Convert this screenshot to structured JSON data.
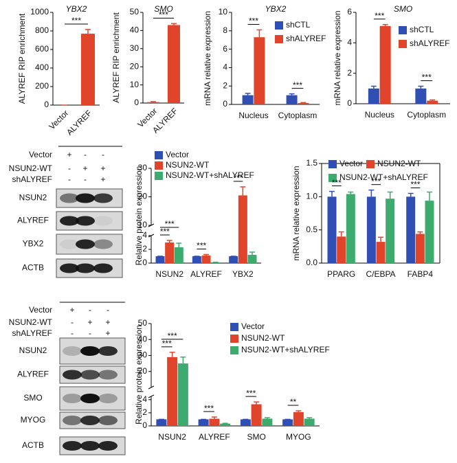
{
  "chart_data": [
    {
      "type": "bar",
      "title": "YBX2",
      "y_label": "ALYREF RIP enrichment",
      "categories": [
        "Vector",
        "ALYREF"
      ],
      "values": [
        0,
        770
      ],
      "errors": [
        0,
        45
      ],
      "color": "#e0452c",
      "ylim": [
        0,
        1000
      ],
      "yticks": [
        0,
        200,
        400,
        600,
        800,
        1000
      ],
      "significance": [
        {
          "label": "***",
          "pair": [
            0,
            1
          ]
        }
      ]
    },
    {
      "type": "bar",
      "title": "SMO",
      "y_label": "ALYREF RIP enrichment",
      "categories": [
        "Vector",
        "ALYREF"
      ],
      "values": [
        0.5,
        43
      ],
      "errors": [
        0.3,
        0.8
      ],
      "color": "#e0452c",
      "ylim": [
        0,
        50
      ],
      "yticks": [
        0,
        10,
        20,
        30,
        40,
        50
      ],
      "significance": [
        {
          "label": "***",
          "pair": [
            0,
            1
          ]
        }
      ]
    },
    {
      "type": "bar",
      "title": "YBX2",
      "y_label": "mRNA relative expression",
      "categories": [
        "Nucleus",
        "Cytoplasm"
      ],
      "series": [
        {
          "name": "shCTL",
          "color": "#2f4fb5",
          "values": [
            1.0,
            1.0
          ],
          "errors": [
            0.2,
            0.15
          ]
        },
        {
          "name": "shALYREF",
          "color": "#e0452c",
          "values": [
            7.3,
            0.15
          ],
          "errors": [
            0.8,
            0.05
          ]
        }
      ],
      "ylim": [
        0,
        10
      ],
      "yticks": [
        0,
        2,
        4,
        6,
        8,
        10
      ],
      "significance": [
        {
          "label": "***",
          "category": 0,
          "pair": [
            0,
            1
          ]
        },
        {
          "label": "***",
          "category": 1,
          "pair": [
            0,
            1
          ]
        }
      ]
    },
    {
      "type": "bar",
      "title": "SMO",
      "y_label": "mRNA relative expression",
      "categories": [
        "Nucleus",
        "Cytoplasm"
      ],
      "series": [
        {
          "name": "shCTL",
          "color": "#2f4fb5",
          "values": [
            1.0,
            1.0
          ],
          "errors": [
            0.15,
            0.15
          ]
        },
        {
          "name": "shALYREF",
          "color": "#e0452c",
          "values": [
            5.1,
            0.2
          ],
          "errors": [
            0.1,
            0.05
          ]
        }
      ],
      "ylim": [
        0,
        6
      ],
      "yticks": [
        0,
        2,
        4,
        6
      ],
      "significance": [
        {
          "label": "***",
          "category": 0,
          "pair": [
            0,
            1
          ]
        },
        {
          "label": "***",
          "category": 1,
          "pair": [
            0,
            1
          ]
        }
      ]
    },
    {
      "type": "bar",
      "y_label": "Relative protein expression",
      "categories": [
        "NSUN2",
        "ALYREF",
        "YBX2"
      ],
      "series": [
        {
          "name": "Vector",
          "color": "#2f4fb5",
          "values": [
            1,
            1,
            1
          ],
          "errors": [
            0,
            0,
            0
          ]
        },
        {
          "name": "NSUN2-WT",
          "color": "#e0452c",
          "values": [
            3.0,
            1.1,
            20.5
          ],
          "errors": [
            0.3,
            0.15,
            3
          ]
        },
        {
          "name": "NSUN2-WT+shALYREF",
          "color": "#3daa6e",
          "values": [
            2.3,
            0.1,
            1.2
          ],
          "errors": [
            0.6,
            0.03,
            0.4
          ]
        }
      ],
      "ylim": [
        0,
        30
      ],
      "axis_break": [
        4,
        10
      ],
      "yticks": [
        0,
        2,
        4,
        10,
        20,
        30
      ],
      "significance": [
        {
          "label": "***",
          "category": 0,
          "pair": [
            0,
            1
          ]
        },
        {
          "label": "***",
          "category": 0,
          "pair": [
            0,
            2
          ]
        },
        {
          "label": "***",
          "category": 1,
          "pair": [
            0,
            1
          ]
        },
        {
          "label": "***",
          "category": 2,
          "pair": [
            0,
            1
          ]
        }
      ]
    },
    {
      "type": "bar",
      "y_label": "mRNA relative expression",
      "categories": [
        "PPARG",
        "C/EBPA",
        "FABP4"
      ],
      "series": [
        {
          "name": "Vector",
          "color": "#2f4fb5",
          "values": [
            1.0,
            1.0,
            1.0
          ],
          "errors": [
            0.08,
            0.1,
            0.05
          ]
        },
        {
          "name": "NSUN2-WT",
          "color": "#e0452c",
          "values": [
            0.4,
            0.32,
            0.44
          ],
          "errors": [
            0.07,
            0.07,
            0.03
          ]
        },
        {
          "name": "NSUN2-WT+shALYREF",
          "color": "#3daa6e",
          "values": [
            1.04,
            0.97,
            0.94
          ],
          "errors": [
            0.03,
            0.1,
            0.13
          ]
        }
      ],
      "ylim": [
        0,
        1.5
      ],
      "yticks": [
        {
          "value": 0,
          "label": "0.0"
        },
        0.5,
        {
          "value": 1,
          "label": "1.0"
        },
        1.5
      ],
      "significance": [
        {
          "label": "***",
          "category": 0,
          "pair": [
            0,
            1
          ]
        },
        {
          "label": "***",
          "category": 1,
          "pair": [
            0,
            1
          ]
        },
        {
          "label": "***",
          "category": 2,
          "pair": [
            0,
            1
          ]
        }
      ]
    },
    {
      "type": "bar",
      "y_label": "Relative protein expression",
      "categories": [
        "NSUN2",
        "ALYREF",
        "SMO",
        "MYOG"
      ],
      "series": [
        {
          "name": "Vector",
          "color": "#2f4fb5",
          "values": [
            1,
            1,
            1,
            1
          ],
          "errors": [
            0,
            0,
            0,
            0
          ]
        },
        {
          "name": "NSUN2-WT",
          "color": "#e0452c",
          "values": [
            29,
            1.1,
            3.3,
            2.1
          ],
          "errors": [
            3,
            0.25,
            0.35,
            0.2
          ]
        },
        {
          "name": "NSUN2-WT+shALYREF",
          "color": "#3daa6e",
          "values": [
            25,
            0.35,
            1.1,
            1.1
          ],
          "errors": [
            4,
            0.05,
            0.15,
            0.15
          ]
        }
      ],
      "ylim": [
        0,
        50
      ],
      "axis_break": [
        4.5,
        10
      ],
      "yticks": [
        0,
        2,
        4,
        20,
        30,
        40,
        50
      ],
      "significance": [
        {
          "label": "***",
          "category": 0,
          "pair": [
            0,
            1
          ]
        },
        {
          "label": "***",
          "category": 0,
          "pair": [
            0,
            2
          ]
        },
        {
          "label": "***",
          "category": 1,
          "pair": [
            0,
            1
          ]
        },
        {
          "label": "***",
          "category": 2,
          "pair": [
            0,
            1
          ]
        },
        {
          "label": "**",
          "category": 3,
          "pair": [
            0,
            1
          ]
        }
      ]
    }
  ],
  "blots": [
    {
      "lanes": [
        {
          "label": "Vector",
          "signs": [
            "+",
            "-",
            "-"
          ]
        },
        {
          "label": "NSUN2-WT",
          "signs": [
            "-",
            "+",
            "+"
          ]
        },
        {
          "label": "shALYREF",
          "signs": [
            "-",
            "-",
            "+"
          ]
        }
      ],
      "rows": [
        "NSUN2",
        "ALYREF",
        "YBX2",
        "ACTB"
      ]
    },
    {
      "lanes": [
        {
          "label": "Vector",
          "signs": [
            "+",
            "-",
            "-"
          ]
        },
        {
          "label": "NSUN2-WT",
          "signs": [
            "-",
            "+",
            "+"
          ]
        },
        {
          "label": "shALYREF",
          "signs": [
            "-",
            "-",
            "+"
          ]
        }
      ],
      "rows": [
        "NSUN2",
        "ALYREF",
        "SMO",
        "MYOG",
        "ACTB"
      ]
    }
  ]
}
